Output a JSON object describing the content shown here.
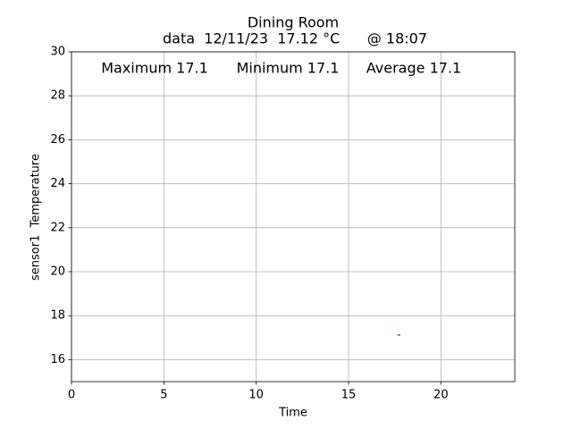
{
  "chart_data": {
    "type": "line",
    "title": "Dining Room",
    "subtitle": "data  12/11/23  17.12 °C      @ 18:07",
    "annotations": [
      "Maximum 17.1",
      "Minimum 17.1",
      "Average 17.1"
    ],
    "xlabel": "Time",
    "ylabel": "sensor1  Temperature",
    "x": [
      17.65,
      17.8
    ],
    "values": [
      17.12,
      17.12
    ],
    "color": "#1f77b4",
    "xlim": [
      0,
      24
    ],
    "xticks": [
      0,
      5,
      10,
      15,
      20
    ],
    "ylim": [
      15,
      30
    ],
    "yticks": [
      16,
      18,
      20,
      22,
      24,
      26,
      28,
      30
    ],
    "grid": true
  }
}
